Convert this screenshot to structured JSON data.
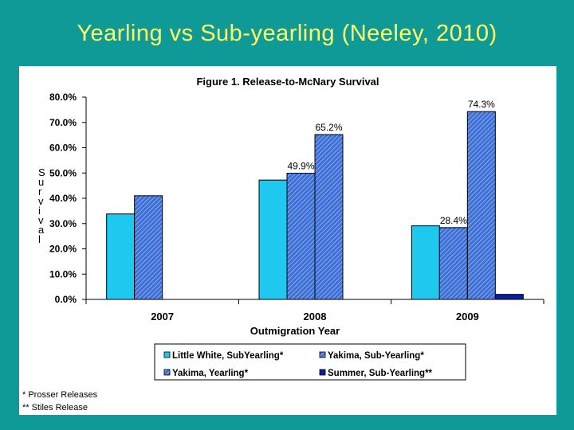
{
  "slide": {
    "title": "Yearling vs Sub-yearling (Neeley, 2010)"
  },
  "chart_data": {
    "type": "bar",
    "title": "Figure 1.  Release-to-McNary Survival",
    "xlabel": "Outmigration Year",
    "ylabel": "Survival",
    "ylim": [
      0,
      80
    ],
    "yticks": [
      "0.0%",
      "10.0%",
      "20.0%",
      "30.0%",
      "40.0%",
      "50.0%",
      "60.0%",
      "70.0%",
      "80.0%"
    ],
    "categories": [
      "2007",
      "2008",
      "2009"
    ],
    "series": [
      {
        "name": "Little White, SubYearling*",
        "values": [
          33.8,
          47.2,
          29.1
        ],
        "color": "#1ec8ee",
        "pattern": "solid"
      },
      {
        "name": "Yakima, Sub-Yearling*",
        "values": [
          41.0,
          49.9,
          28.4
        ],
        "color": "#3d6fd6",
        "pattern": "hatch"
      },
      {
        "name": "Yakima, Yearling*",
        "values": [
          null,
          65.2,
          74.3
        ],
        "color": "#3d6fd6",
        "pattern": "hatch"
      },
      {
        "name": "Summer, Sub-Yearling**",
        "values": [
          null,
          null,
          2.0
        ],
        "color": "#0a1fa0",
        "pattern": "solid"
      }
    ],
    "data_labels": [
      {
        "text": "74.3%",
        "series": 2,
        "category": 2
      },
      {
        "text": "65.2%",
        "series": 2,
        "category": 1
      },
      {
        "text": "49.9%",
        "series": 1,
        "category": 1
      },
      {
        "text": "28.4%",
        "series": 1,
        "category": 2
      }
    ],
    "legend": {
      "placement": "bottom",
      "columns": 2
    }
  },
  "footnotes": [
    "* Prosser Releases",
    "** Stiles Release"
  ]
}
